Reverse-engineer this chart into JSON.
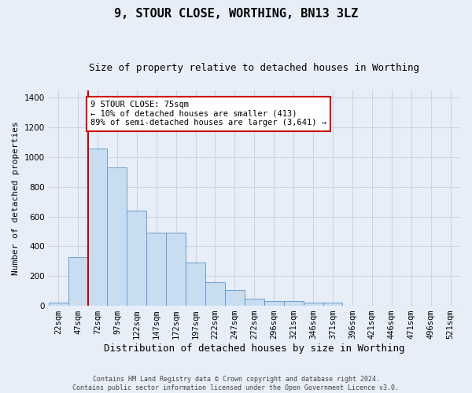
{
  "title": "9, STOUR CLOSE, WORTHING, BN13 3LZ",
  "subtitle": "Size of property relative to detached houses in Worthing",
  "xlabel": "Distribution of detached houses by size in Worthing",
  "ylabel": "Number of detached properties",
  "footer_line1": "Contains HM Land Registry data © Crown copyright and database right 2024.",
  "footer_line2": "Contains public sector information licensed under the Open Government Licence v3.0.",
  "bin_labels": [
    "22sqm",
    "47sqm",
    "72sqm",
    "97sqm",
    "122sqm",
    "147sqm",
    "172sqm",
    "197sqm",
    "222sqm",
    "247sqm",
    "272sqm",
    "296sqm",
    "321sqm",
    "346sqm",
    "371sqm",
    "396sqm",
    "421sqm",
    "446sqm",
    "471sqm",
    "496sqm",
    "521sqm"
  ],
  "bar_values": [
    20,
    330,
    1060,
    930,
    640,
    490,
    490,
    290,
    160,
    105,
    50,
    30,
    30,
    20,
    20,
    0,
    0,
    0,
    0,
    0,
    0
  ],
  "bar_color": "#c9ddf0",
  "bar_edge_color": "#5a96c8",
  "grid_color": "#c8d4e8",
  "background_color": "#e8eef8",
  "vline_color": "#cc0000",
  "vline_x_index": 2,
  "annotation_text": "9 STOUR CLOSE: 75sqm\n← 10% of detached houses are smaller (413)\n89% of semi-detached houses are larger (3,641) →",
  "annotation_box_color": "white",
  "annotation_box_edge": "#cc0000",
  "ylim": [
    0,
    1450
  ],
  "yticks": [
    0,
    200,
    400,
    600,
    800,
    1000,
    1200,
    1400
  ],
  "title_fontsize": 11,
  "subtitle_fontsize": 9,
  "xlabel_fontsize": 9,
  "ylabel_fontsize": 8,
  "tick_fontsize": 7.5,
  "annotation_fontsize": 7.5
}
